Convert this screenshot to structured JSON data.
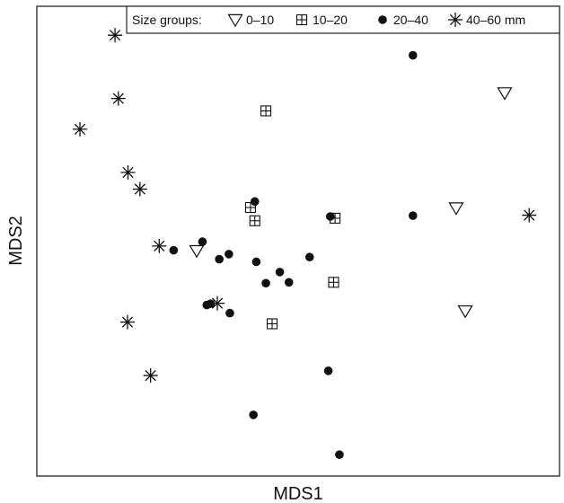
{
  "chart_data": {
    "type": "scatter",
    "xlabel": "MDS1",
    "ylabel": "MDS2",
    "xlim": [
      0,
      100
    ],
    "ylim": [
      0,
      100
    ],
    "grid": false,
    "legend": {
      "placement": "top-right",
      "title": "Size groups:",
      "entries": [
        {
          "label": "0–10",
          "marker": "triangle-down-open"
        },
        {
          "label": "10–20",
          "marker": "square-plus"
        },
        {
          "label": "20–40",
          "marker": "circle-filled"
        },
        {
          "label": "40–60 mm",
          "marker": "asterisk"
        }
      ]
    },
    "series": [
      {
        "marker": "triangle-down-open",
        "points": [
          [
            92.7,
            85.2
          ],
          [
            82.6,
            58.3
          ],
          [
            28.6,
            48.3
          ],
          [
            84.5,
            34.2
          ]
        ]
      },
      {
        "marker": "square-plus",
        "points": [
          [
            43.0,
            81.0
          ],
          [
            39.8,
            58.4
          ],
          [
            40.7,
            55.3
          ],
          [
            57.4,
            55.9
          ],
          [
            57.1,
            40.9
          ],
          [
            44.3,
            31.2
          ]
        ]
      },
      {
        "marker": "circle-filled",
        "points": [
          [
            73.6,
            94.0
          ],
          [
            40.7,
            59.8
          ],
          [
            56.4,
            56.3
          ],
          [
            73.6,
            56.5
          ],
          [
            23.8,
            48.4
          ],
          [
            29.8,
            50.4
          ],
          [
            33.3,
            46.3
          ],
          [
            35.3,
            47.5
          ],
          [
            41.0,
            45.7
          ],
          [
            45.9,
            43.3
          ],
          [
            52.1,
            46.8
          ],
          [
            43.0,
            40.7
          ],
          [
            47.8,
            40.9
          ],
          [
            30.7,
            35.6
          ],
          [
            31.5,
            35.9
          ],
          [
            35.5,
            33.7
          ],
          [
            56.0,
            20.2
          ],
          [
            40.4,
            9.9
          ],
          [
            58.3,
            0.6
          ]
        ]
      },
      {
        "marker": "asterisk",
        "points": [
          [
            11.6,
            98.7
          ],
          [
            12.3,
            83.9
          ],
          [
            4.3,
            76.7
          ],
          [
            14.3,
            66.6
          ],
          [
            16.8,
            62.7
          ],
          [
            20.8,
            49.4
          ],
          [
            32.9,
            36.0
          ],
          [
            14.2,
            31.6
          ],
          [
            19.0,
            19.1
          ],
          [
            97.8,
            56.6
          ]
        ]
      }
    ]
  }
}
